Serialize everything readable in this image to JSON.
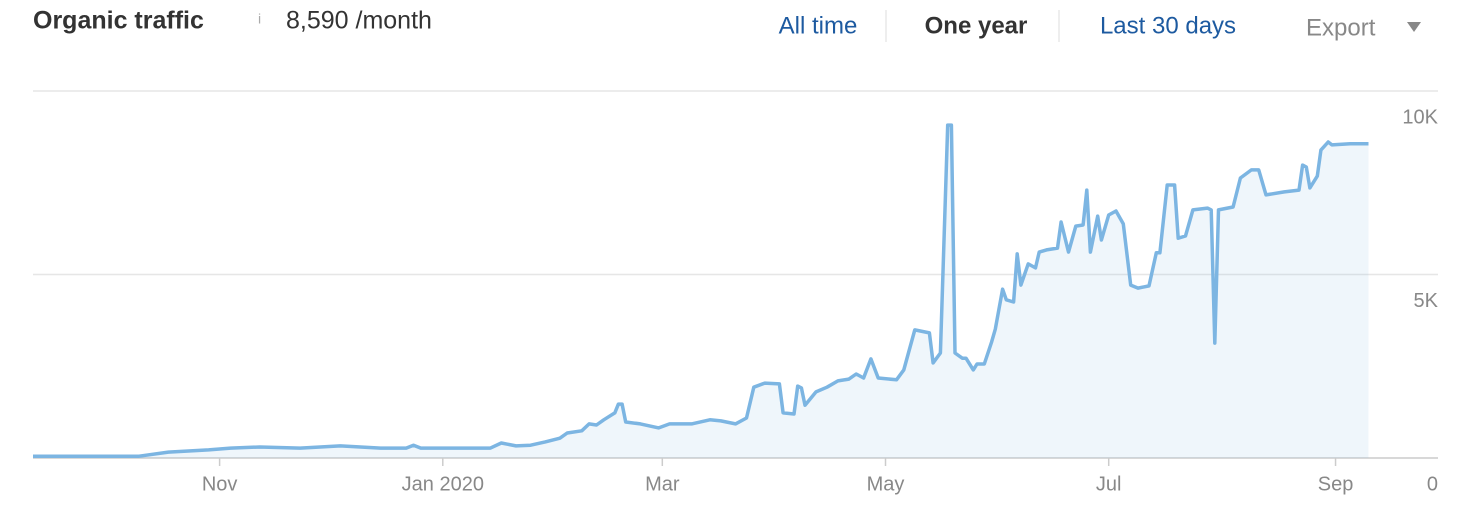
{
  "chart_data": {
    "type": "line",
    "title": "Organic traffic",
    "info_icon": "i",
    "metric": "8,590 /month",
    "ranges": [
      "All time",
      "One year",
      "Last 30 days"
    ],
    "export": "Export",
    "x": [
      0,
      29,
      37,
      48,
      54,
      62,
      73,
      84,
      95,
      102,
      104,
      106,
      125,
      128,
      132,
      136,
      140,
      144,
      146,
      150,
      152,
      154,
      156,
      159,
      160,
      161,
      162,
      166,
      171,
      174,
      180,
      185,
      188,
      192,
      195,
      197,
      200,
      204,
      205,
      208,
      209,
      210,
      211,
      214,
      217,
      220,
      223,
      225,
      227,
      229,
      231,
      236,
      238,
      241,
      245,
      246,
      248,
      250,
      251,
      252,
      254,
      255,
      257,
      258,
      260,
      262,
      263,
      265,
      266,
      268,
      269,
      270,
      272,
      274,
      275,
      277,
      280,
      281,
      283,
      285,
      287,
      288,
      289,
      291,
      292,
      294,
      296,
      298,
      300,
      302,
      305,
      307,
      308,
      310,
      312,
      313,
      315,
      317,
      321,
      322,
      323,
      324,
      328,
      330,
      333,
      335,
      337,
      342,
      346,
      347,
      348,
      349,
      351,
      352,
      354,
      355,
      360,
      365
    ],
    "values": [
      50,
      50,
      160,
      220,
      270,
      300,
      270,
      330,
      270,
      270,
      350,
      270,
      270,
      410,
      330,
      350,
      440,
      540,
      680,
      740,
      930,
      900,
      1040,
      1230,
      1470,
      1470,
      980,
      930,
      820,
      930,
      930,
      1040,
      1010,
      930,
      1090,
      1930,
      2040,
      2020,
      1230,
      1200,
      1960,
      1910,
      1440,
      1800,
      1930,
      2100,
      2150,
      2290,
      2180,
      2700,
      2180,
      2130,
      2400,
      3490,
      3410,
      2590,
      2860,
      9070,
      9070,
      2860,
      2720,
      2720,
      2400,
      2560,
      2560,
      3160,
      3510,
      4600,
      4310,
      4250,
      5560,
      4710,
      5290,
      5180,
      5610,
      5670,
      5720,
      6430,
      5610,
      6320,
      6350,
      7300,
      5610,
      6590,
      5940,
      6620,
      6730,
      6380,
      4710,
      4630,
      4690,
      5590,
      5590,
      7440,
      7440,
      5990,
      6050,
      6760,
      6810,
      6760,
      3130,
      6760,
      6840,
      7630,
      7850,
      7850,
      7170,
      7250,
      7300,
      7980,
      7930,
      7360,
      7680,
      8390,
      8610,
      8530,
      8560,
      8560
    ],
    "color": "#7cb5e2",
    "xlim": [
      0,
      384
    ],
    "xticks": [
      {
        "value": 51,
        "label": "Nov"
      },
      {
        "value": 112,
        "label": "Jan 2020"
      },
      {
        "value": 172,
        "label": "Mar"
      },
      {
        "value": 233,
        "label": "May"
      },
      {
        "value": 294,
        "label": "Jul"
      },
      {
        "value": 356,
        "label": "Sep"
      }
    ],
    "ylim": [
      0,
      10000
    ],
    "yticks": [
      0,
      {
        "value": 5000,
        "label": "5K"
      },
      {
        "value": 10000,
        "label": "10K"
      }
    ],
    "grid": true
  }
}
